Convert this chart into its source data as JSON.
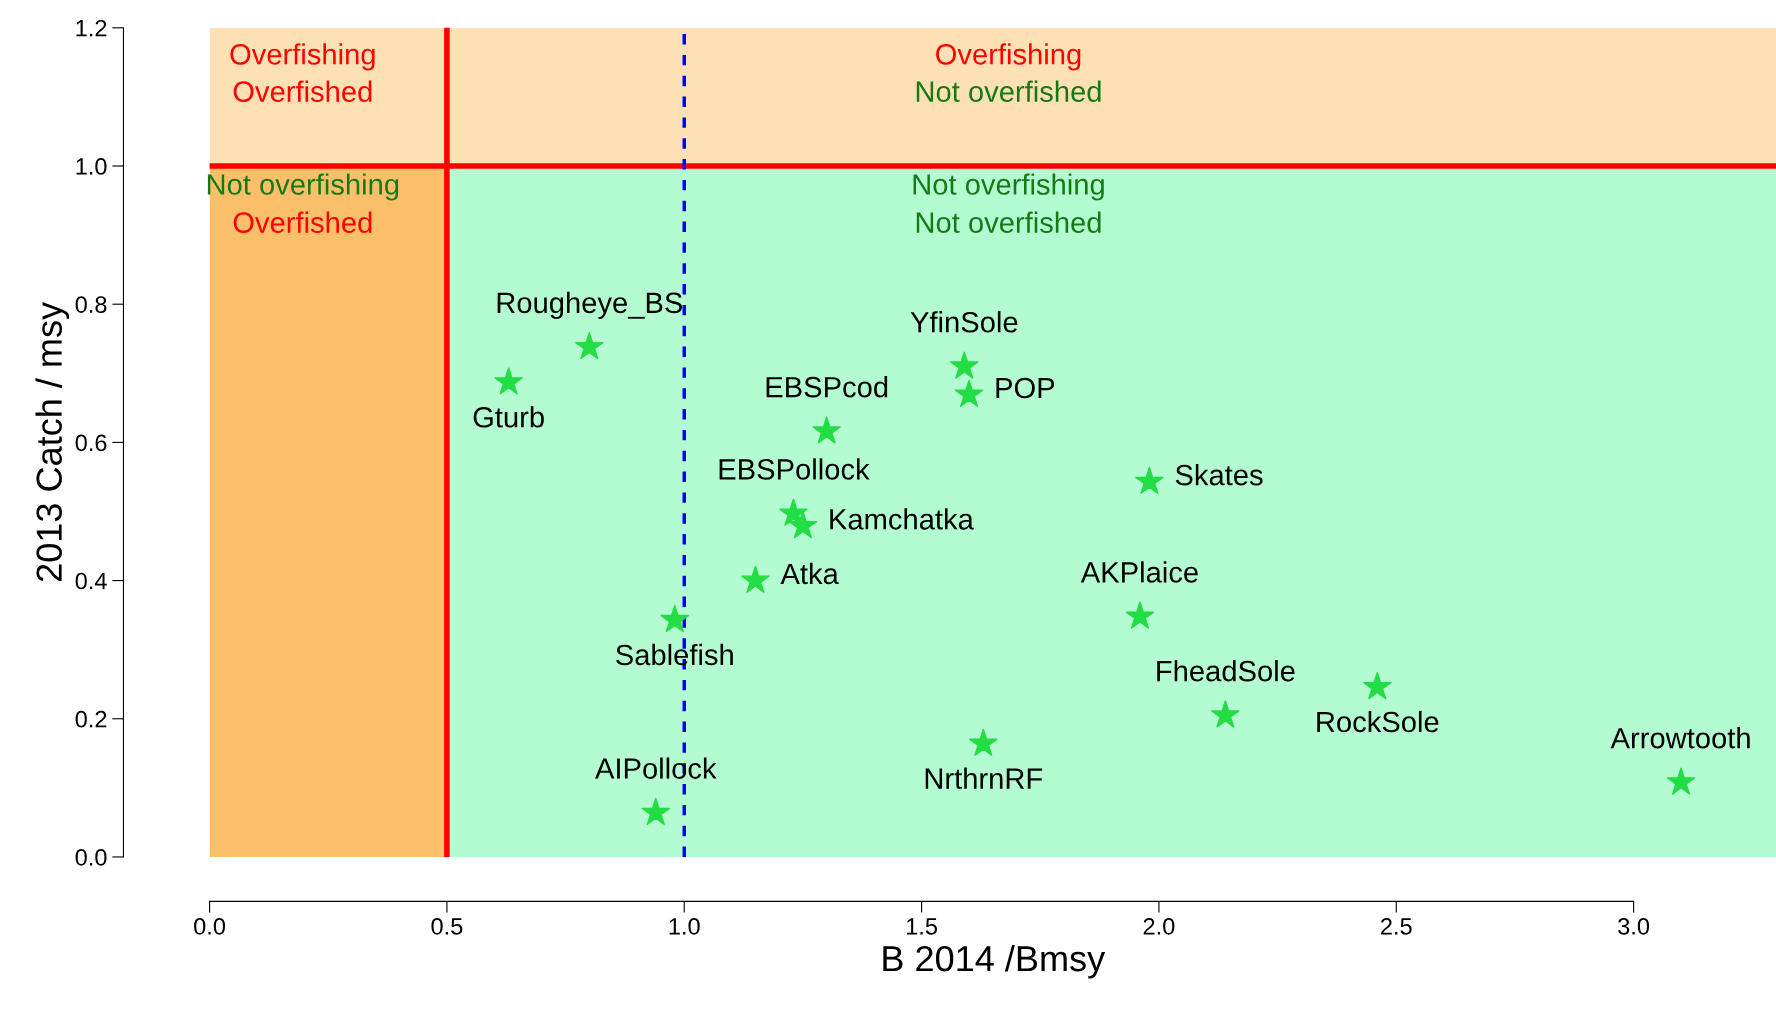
{
  "chart_data": {
    "type": "scatter",
    "xlabel": "B 2014 /Bmsy",
    "ylabel": "2013 Catch / msy",
    "xlim": [
      0,
      3.3
    ],
    "ylim": [
      0,
      1.2
    ],
    "xticks": [
      {
        "value": 0,
        "label": "0.0"
      },
      {
        "value": 0.5,
        "label": "0.5"
      },
      {
        "value": 1,
        "label": "1.0"
      },
      {
        "value": 1.5,
        "label": "1.5"
      },
      {
        "value": 2,
        "label": "2.0"
      },
      {
        "value": 2.5,
        "label": "2.5"
      },
      {
        "value": 3,
        "label": "3.0"
      }
    ],
    "yticks": [
      {
        "value": 0,
        "label": "0.0"
      },
      {
        "value": 0.2,
        "label": "0.2"
      },
      {
        "value": 0.4,
        "label": "0.4"
      },
      {
        "value": 0.6,
        "label": "0.6"
      },
      {
        "value": 0.8,
        "label": "0.8"
      },
      {
        "value": 1,
        "label": "1.0"
      },
      {
        "value": 1.2,
        "label": "1.2"
      }
    ],
    "grid": false,
    "legend": false,
    "marker": "star",
    "series": [
      {
        "color": "#22dd44",
        "x": [
          0.63,
          0.8,
          1.3,
          1.59,
          1.6,
          1.98,
          1.23,
          1.25,
          1.15,
          1.96,
          0.98,
          2.14,
          2.46,
          1.63,
          3.1,
          0.94
        ],
        "values": [
          0.687,
          0.738,
          0.616,
          0.71,
          0.669,
          0.543,
          0.497,
          0.479,
          0.4,
          0.348,
          0.343,
          0.205,
          0.246,
          0.164,
          0.108,
          0.064
        ]
      }
    ],
    "bands": [
      {
        "axis": "y",
        "from": 0,
        "to": 1,
        "color": "#b3fbd0"
      },
      {
        "axis": "y",
        "from": 1,
        "to": 1.2,
        "color": "#fde0b4"
      },
      {
        "axis": "x",
        "from": 0,
        "to": 0.5,
        "color": "#fbbf6a"
      }
    ],
    "ref_lines": [
      {
        "axis": "x",
        "value": 0.5,
        "color": "#ff0000",
        "line_style": "solid"
      },
      {
        "axis": "y",
        "value": 1.0,
        "color": "#ff0000",
        "line_style": "solid"
      },
      {
        "axis": "x",
        "value": 1.0,
        "color": "#0000ff",
        "line_style": "dashed"
      }
    ],
    "annotations": [
      {
        "text": "Gturb",
        "x": 0.63,
        "y": 0.687
      },
      {
        "text": "Rougheye_BS",
        "x": 0.8,
        "y": 0.738
      },
      {
        "text": "EBSPcod",
        "x": 1.3,
        "y": 0.616
      },
      {
        "text": "YfinSole",
        "x": 1.59,
        "y": 0.71
      },
      {
        "text": "POP",
        "x": 1.6,
        "y": 0.669
      },
      {
        "text": "Skates",
        "x": 1.98,
        "y": 0.543
      },
      {
        "text": "EBSPollock",
        "x": 1.23,
        "y": 0.497
      },
      {
        "text": "Kamchatka",
        "x": 1.25,
        "y": 0.479
      },
      {
        "text": "Atka",
        "x": 1.15,
        "y": 0.4
      },
      {
        "text": "AKPlaice",
        "x": 1.96,
        "y": 0.348
      },
      {
        "text": "Sablefish",
        "x": 0.98,
        "y": 0.343
      },
      {
        "text": "FheadSole",
        "x": 2.14,
        "y": 0.205
      },
      {
        "text": "RockSole",
        "x": 2.46,
        "y": 0.246
      },
      {
        "text": "NrthrnRF",
        "x": 1.63,
        "y": 0.164
      },
      {
        "text": "Arrowtooth",
        "x": 3.1,
        "y": 0.108
      },
      {
        "text": "AIPollock",
        "x": 0.94,
        "y": 0.064
      },
      "Overfishing",
      "Overfished",
      "Overfishing",
      "Not overfished",
      "Not overfishing",
      "Overfished",
      "Not overfishing",
      "Not overfished"
    ]
  }
}
